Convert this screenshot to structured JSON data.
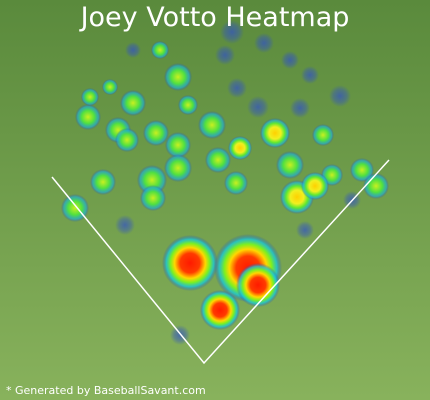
{
  "title": "Joey Votto Heatmap",
  "footer": "* Generated by BaseballSavant.com"
}
